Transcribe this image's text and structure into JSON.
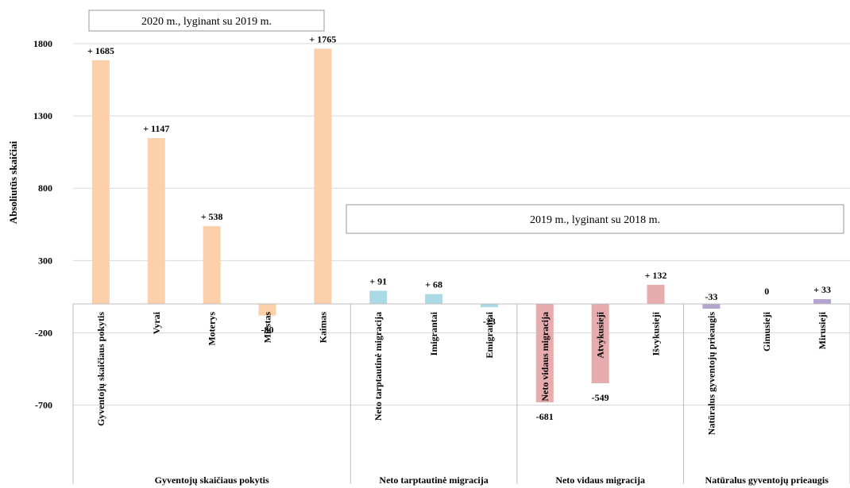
{
  "chart_data": {
    "type": "bar",
    "ylabel": "Absoliutūs skaičiai",
    "ylim": [
      -1200,
      1800
    ],
    "yticks": [
      -700,
      -200,
      300,
      800,
      1300,
      1800
    ],
    "grid": true,
    "annotations": [
      "2020 m., lyginant su 2019 m.",
      "2019 m., lyginant su 2018 m."
    ],
    "categories": [
      "Gyventojų skaičiaus pokytis",
      "Vyrai",
      "Moterys",
      "Miestas",
      "Kaimas",
      "Neto tarptautinė migracija",
      "Imigrantai",
      "Emigrantai",
      "Neto vidaus migracija",
      "Atvykusieji",
      "Išvykusieji",
      "Natūralus gyventojų prieaugis",
      "Gimusieji",
      "Mirusieji"
    ],
    "values": [
      1685,
      1147,
      538,
      -80,
      1765,
      91,
      68,
      -23,
      -681,
      -549,
      132,
      -33,
      0,
      33
    ],
    "data_labels": [
      "+ 1685",
      "+ 1147",
      "+ 538",
      "-80",
      "+ 1765",
      "+ 91",
      "+ 68",
      "-23",
      "-681",
      "-549",
      "+ 132",
      "-33",
      "0",
      "+ 33"
    ],
    "bar_colors": [
      "#fbd0aa",
      "#fbd0aa",
      "#fbd0aa",
      "#fbd0aa",
      "#fbd0aa",
      "#acd9e6",
      "#acd9e6",
      "#acd9e6",
      "#e6acae",
      "#e6acae",
      "#e6acae",
      "#b3a3cf",
      "#b3a3cf",
      "#b3a3cf"
    ],
    "groups": [
      {
        "label": "Gyventojų skaičiaus pokytis",
        "members": [
          0,
          1,
          2,
          3,
          4
        ]
      },
      {
        "label": "Neto tarptautinė migracija",
        "members": [
          5,
          6,
          7
        ]
      },
      {
        "label": "Neto vidaus migracija",
        "members": [
          8,
          9,
          10
        ]
      },
      {
        "label": "Natūralus gyventojų prieaugis",
        "members": [
          11,
          12,
          13
        ]
      }
    ]
  }
}
